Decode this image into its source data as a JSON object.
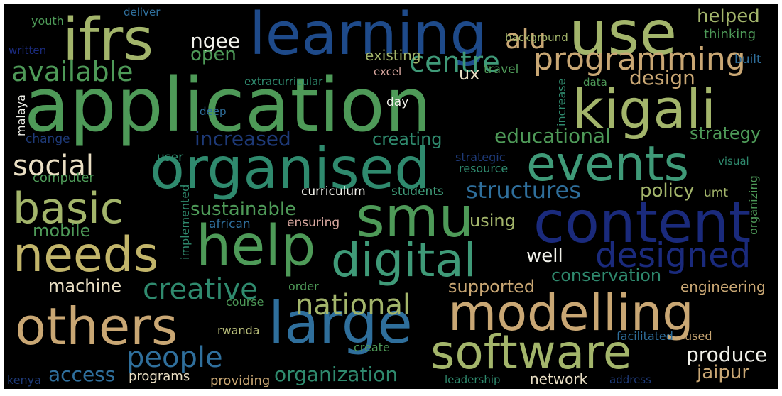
{
  "palette": {
    "green": "#4e9a58",
    "teal": "#2f8a6e",
    "olive": "#a3b56b",
    "tan": "#c9a774",
    "navy": "#1a2a7c",
    "steel": "#2f6f9c",
    "darkblue": "#1e3a78",
    "cream": "#eadfc4",
    "pink": "#d9a8a0",
    "seagreen": "#3f9a78",
    "khaki": "#b8bd7a",
    "white": "#f1f1ea"
  },
  "words": [
    {
      "id": "application",
      "text": "application",
      "color": "#4e9a58"
    },
    {
      "id": "learning",
      "text": "learning",
      "color": "#1e4a8a"
    },
    {
      "id": "use",
      "text": "use",
      "color": "#a3b56b"
    },
    {
      "id": "ifrs",
      "text": "ifrs",
      "color": "#a3b56b"
    },
    {
      "id": "kigali",
      "text": "kigali",
      "color": "#a3b56b"
    },
    {
      "id": "organised",
      "text": "organised",
      "color": "#2f8a6e"
    },
    {
      "id": "events",
      "text": "events",
      "color": "#3f9a78"
    },
    {
      "id": "content",
      "text": "content",
      "color": "#1a2a7c"
    },
    {
      "id": "smu",
      "text": "smu",
      "color": "#4e9a58"
    },
    {
      "id": "help",
      "text": "help",
      "color": "#4e9a58"
    },
    {
      "id": "basic",
      "text": "basic",
      "color": "#a3b56b"
    },
    {
      "id": "needs",
      "text": "needs",
      "color": "#c2b56a"
    },
    {
      "id": "digital",
      "text": "digital",
      "color": "#3f9a78"
    },
    {
      "id": "modelling",
      "text": "modelling",
      "color": "#c9a774"
    },
    {
      "id": "others",
      "text": "others",
      "color": "#c9a774"
    },
    {
      "id": "large",
      "text": "large",
      "color": "#2f6f9c"
    },
    {
      "id": "software",
      "text": "software",
      "color": "#a3b56b"
    },
    {
      "id": "designed",
      "text": "designed",
      "color": "#1a2a7c"
    },
    {
      "id": "programming",
      "text": "programming",
      "color": "#c9a774"
    },
    {
      "id": "alu",
      "text": "alu",
      "color": "#c9a774"
    },
    {
      "id": "helped",
      "text": "helped",
      "color": "#a3b56b"
    },
    {
      "id": "available",
      "text": "available",
      "color": "#4e9a58"
    },
    {
      "id": "centre",
      "text": "centre",
      "color": "#3f9a78"
    },
    {
      "id": "social",
      "text": "social",
      "color": "#eadfc4"
    },
    {
      "id": "people",
      "text": "people",
      "color": "#2f6f9c"
    },
    {
      "id": "creative",
      "text": "creative",
      "color": "#2f8a6e"
    },
    {
      "id": "national",
      "text": "national",
      "color": "#a3b56b"
    },
    {
      "id": "structures",
      "text": "structures",
      "color": "#2f6f9c"
    },
    {
      "id": "policy",
      "text": "policy",
      "color": "#a3b56b"
    },
    {
      "id": "educational",
      "text": "educational",
      "color": "#4e9a58"
    },
    {
      "id": "increased",
      "text": "increased",
      "color": "#1e3a78"
    },
    {
      "id": "creating",
      "text": "creating",
      "color": "#2f8a6e"
    },
    {
      "id": "strategy",
      "text": "strategy",
      "color": "#4e9a58"
    },
    {
      "id": "design",
      "text": "design",
      "color": "#c9a774"
    },
    {
      "id": "ngee",
      "text": "ngee",
      "color": "#f1f1ea"
    },
    {
      "id": "open",
      "text": "open",
      "color": "#4e9a58"
    },
    {
      "id": "ux",
      "text": "ux",
      "color": "#eadfc4"
    },
    {
      "id": "existing",
      "text": "existing",
      "color": "#a3b56b"
    },
    {
      "id": "sustainable",
      "text": "sustainable",
      "color": "#4e9a58"
    },
    {
      "id": "mobile",
      "text": "mobile",
      "color": "#4e9a58"
    },
    {
      "id": "using",
      "text": "using",
      "color": "#a3b56b"
    },
    {
      "id": "well",
      "text": "well",
      "color": "#f1f1ea"
    },
    {
      "id": "machine",
      "text": "machine",
      "color": "#eadfc4"
    },
    {
      "id": "supported",
      "text": "supported",
      "color": "#c9a774"
    },
    {
      "id": "conservation",
      "text": "conservation",
      "color": "#2f8a6e"
    },
    {
      "id": "engineering",
      "text": "engineering",
      "color": "#c9a774"
    },
    {
      "id": "produce",
      "text": "produce",
      "color": "#f1f1ea"
    },
    {
      "id": "jaipur",
      "text": "jaipur",
      "color": "#c9a774"
    },
    {
      "id": "access",
      "text": "access",
      "color": "#2f6f9c"
    },
    {
      "id": "organization",
      "text": "organization",
      "color": "#2f8a6e"
    },
    {
      "id": "network",
      "text": "network",
      "color": "#eadfc4"
    },
    {
      "id": "providing",
      "text": "providing",
      "color": "#c9a774"
    },
    {
      "id": "programs",
      "text": "programs",
      "color": "#eadfc4"
    },
    {
      "id": "rwanda",
      "text": "rwanda",
      "color": "#b8bd7a"
    },
    {
      "id": "course",
      "text": "course",
      "color": "#4e9a58"
    },
    {
      "id": "order",
      "text": "order",
      "color": "#4e9a58"
    },
    {
      "id": "create",
      "text": "create",
      "color": "#4e9a58"
    },
    {
      "id": "facilitated",
      "text": "facilitated",
      "color": "#2f6f9c"
    },
    {
      "id": "used",
      "text": "used",
      "color": "#c9a774"
    },
    {
      "id": "leadership",
      "text": "leadership",
      "color": "#2f8a6e"
    },
    {
      "id": "address",
      "text": "address",
      "color": "#1e3a78"
    },
    {
      "id": "kenya",
      "text": "kenya",
      "color": "#1e3a78"
    },
    {
      "id": "youth",
      "text": "youth",
      "color": "#4e9a58"
    },
    {
      "id": "deliver",
      "text": "deliver",
      "color": "#2f6f9c"
    },
    {
      "id": "written",
      "text": "written",
      "color": "#1a2a7c"
    },
    {
      "id": "background",
      "text": "background",
      "color": "#a3b56b"
    },
    {
      "id": "thinking",
      "text": "thinking",
      "color": "#4e9a58"
    },
    {
      "id": "built",
      "text": "built",
      "color": "#2f6f9c"
    },
    {
      "id": "travel",
      "text": "travel",
      "color": "#4e9a58"
    },
    {
      "id": "excel",
      "text": "excel",
      "color": "#d9a8a0"
    },
    {
      "id": "extracurricular",
      "text": "extracurricular",
      "color": "#2f8a6e"
    },
    {
      "id": "data",
      "text": "data",
      "color": "#4e9a58"
    },
    {
      "id": "day",
      "text": "day",
      "color": "#f1f1ea"
    },
    {
      "id": "deep",
      "text": "deep",
      "color": "#2f6f9c"
    },
    {
      "id": "change",
      "text": "change",
      "color": "#1e3a78"
    },
    {
      "id": "user",
      "text": "user",
      "color": "#2f8a6e"
    },
    {
      "id": "computer",
      "text": "computer",
      "color": "#4e9a58"
    },
    {
      "id": "strategic",
      "text": "strategic",
      "color": "#1e3a78"
    },
    {
      "id": "resource",
      "text": "resource",
      "color": "#2f8a6e"
    },
    {
      "id": "visual",
      "text": "visual",
      "color": "#2f8a6e"
    },
    {
      "id": "curriculum",
      "text": "curriculum",
      "color": "#f1f1ea"
    },
    {
      "id": "students",
      "text": "students",
      "color": "#3f9a78"
    },
    {
      "id": "umt",
      "text": "umt",
      "color": "#a3b56b"
    },
    {
      "id": "african",
      "text": "african",
      "color": "#2f6f9c"
    },
    {
      "id": "ensuring",
      "text": "ensuring",
      "color": "#d9a8a0"
    },
    {
      "id": "malaya",
      "text": "malaya",
      "color": "#f1f1ea"
    },
    {
      "id": "increase",
      "text": "increase",
      "color": "#2f8a6e"
    },
    {
      "id": "implemented",
      "text": "implemented",
      "color": "#2f8a6e"
    },
    {
      "id": "organizing",
      "text": "organizing",
      "color": "#4e9a58"
    }
  ]
}
